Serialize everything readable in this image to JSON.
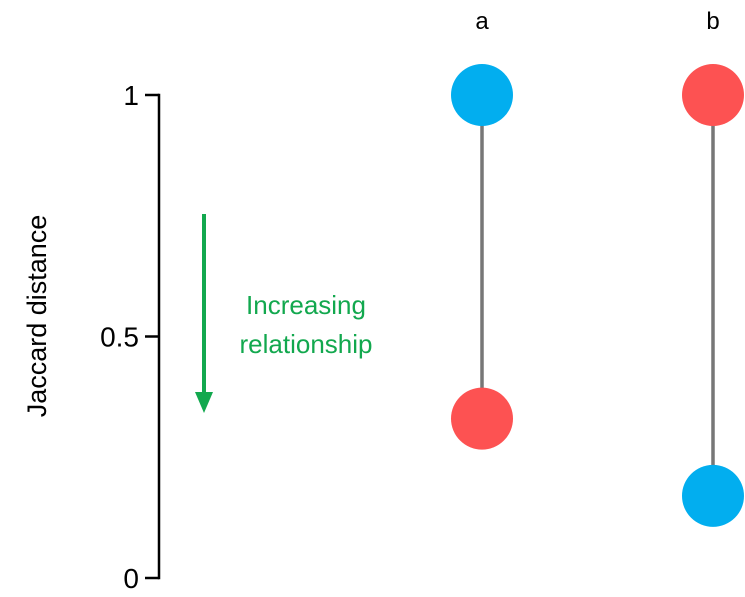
{
  "chart_data": {
    "type": "scatter",
    "ylabel": "Jaccard distance",
    "ylim": [
      0,
      1
    ],
    "yticks": [
      {
        "value": 0,
        "label": "0"
      },
      {
        "value": 0.5,
        "label": "0.5"
      },
      {
        "value": 1,
        "label": "1"
      }
    ],
    "annotation": {
      "text_lines": [
        "Increasing",
        "relationship"
      ],
      "direction": "down",
      "color": "#12a84e"
    },
    "colors": {
      "blue": "#02aeef",
      "red": "#fd5252",
      "connector": "#777777",
      "axis": "#000000"
    },
    "columns": [
      {
        "label": "a",
        "points": [
          {
            "y": 1.0,
            "color": "blue"
          },
          {
            "y": 0.33,
            "color": "red"
          }
        ]
      },
      {
        "label": "b",
        "points": [
          {
            "y": 1.0,
            "color": "red"
          },
          {
            "y": 0.17,
            "color": "blue"
          }
        ]
      }
    ]
  }
}
